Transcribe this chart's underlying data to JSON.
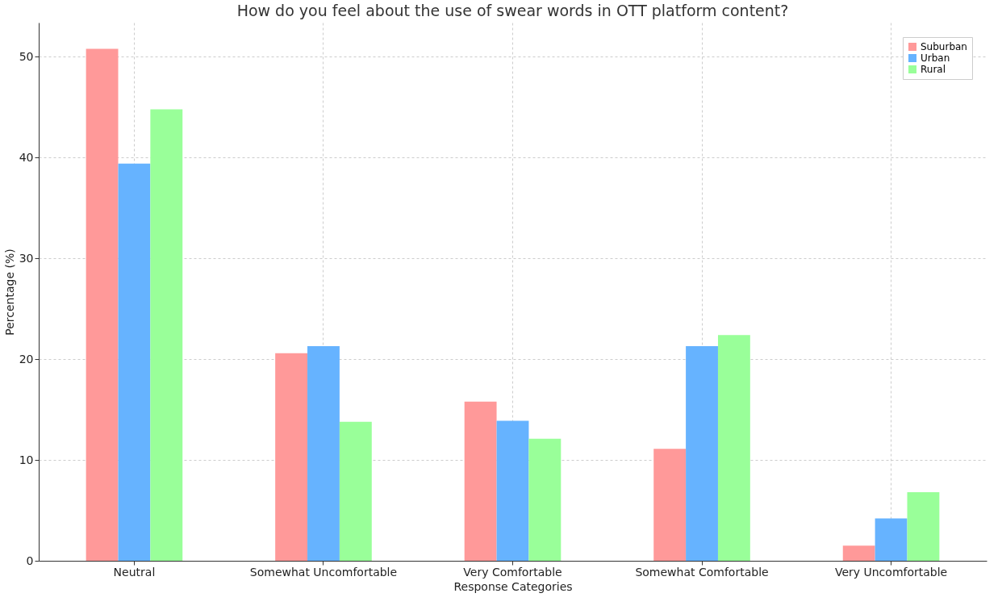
{
  "chart_data": {
    "type": "bar",
    "title": "How do you feel about the use of swear words in OTT platform content?",
    "xlabel": "Response Categories",
    "ylabel": "Percentage (%)",
    "categories": [
      "Neutral",
      "Somewhat Uncomfortable",
      "Very Comfortable",
      "Somewhat Comfortable",
      "Very Uncomfortable"
    ],
    "series": [
      {
        "name": "Suburban",
        "color": "#ff9999",
        "values": [
          50.8,
          20.6,
          15.8,
          11.1,
          1.5
        ]
      },
      {
        "name": "Urban",
        "color": "#66b3ff",
        "values": [
          39.4,
          21.3,
          13.9,
          21.3,
          4.2
        ]
      },
      {
        "name": "Rural",
        "color": "#99ff99",
        "values": [
          44.8,
          13.8,
          12.1,
          22.4,
          6.8
        ]
      }
    ],
    "ylim": [
      0,
      53.4
    ],
    "yticks": [
      0,
      10,
      20,
      30,
      40,
      50
    ],
    "grid": true,
    "legend": "top right"
  }
}
